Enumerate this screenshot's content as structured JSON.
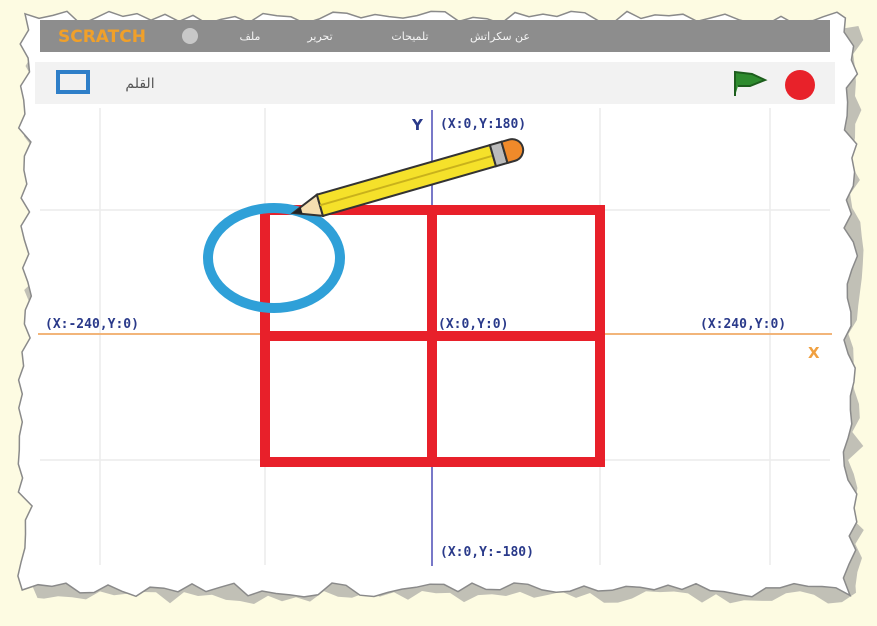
{
  "header": {
    "logo": "SCRATCH",
    "menu": [
      "عن سكراتش",
      "تلميحات",
      "تحرير",
      "ملف"
    ]
  },
  "toolbar": {
    "label": "القلم"
  },
  "stage": {
    "y_axis": "Y",
    "x_axis": "X",
    "labels": {
      "top": "(X:0,Y:180)",
      "left": "(X:-240,Y:0)",
      "center": "(X:0,Y:0)",
      "right": "(X:240,Y:0)",
      "bottom": "(X:0,Y:-180)"
    }
  }
}
